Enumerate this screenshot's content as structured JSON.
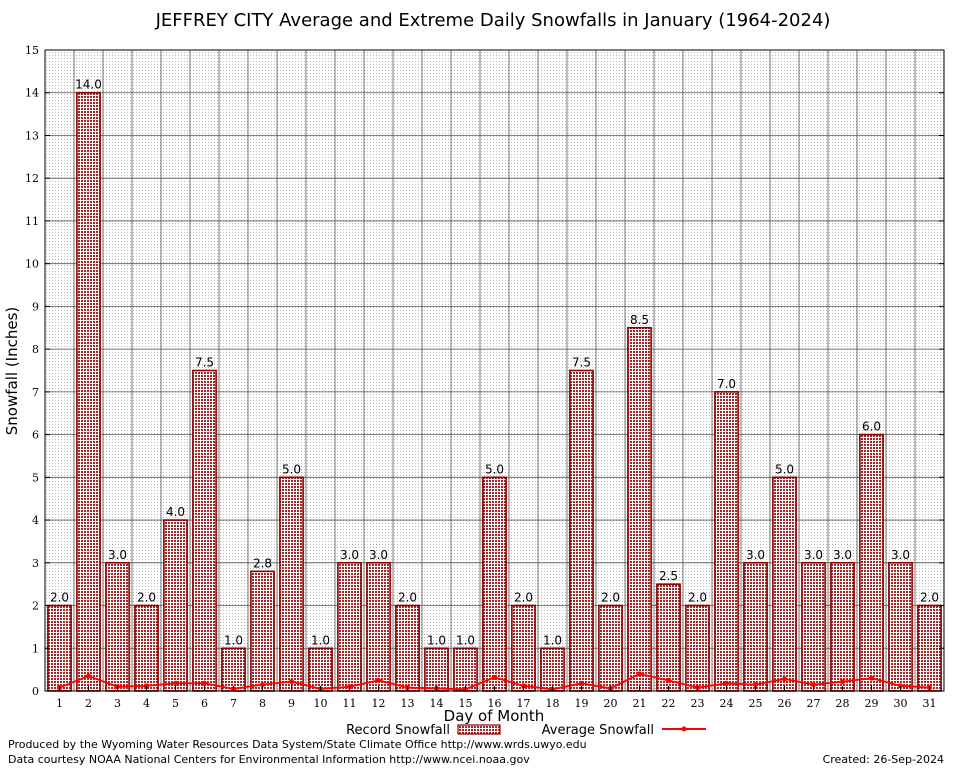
{
  "chart_data": {
    "type": "bar",
    "title": "JEFFREY CITY Average and Extreme Daily Snowfalls in January (1964-2024)",
    "xlabel": "Day of Month",
    "ylabel": "Snowfall (Inches)",
    "ylim": [
      0,
      15
    ],
    "yticks": [
      0,
      1,
      2,
      3,
      4,
      5,
      6,
      7,
      8,
      9,
      10,
      11,
      12,
      13,
      14,
      15
    ],
    "grid": true,
    "categories": [
      "1",
      "2",
      "3",
      "4",
      "5",
      "6",
      "7",
      "8",
      "9",
      "10",
      "11",
      "12",
      "13",
      "14",
      "15",
      "16",
      "17",
      "18",
      "19",
      "20",
      "21",
      "22",
      "23",
      "24",
      "25",
      "26",
      "27",
      "28",
      "29",
      "30",
      "31"
    ],
    "series": [
      {
        "name": "Record Snowfall",
        "kind": "bar",
        "color": "#8b0000",
        "values": [
          2.0,
          14.0,
          3.0,
          2.0,
          4.0,
          7.5,
          1.0,
          2.8,
          5.0,
          1.0,
          3.0,
          3.0,
          2.0,
          1.0,
          1.0,
          5.0,
          2.0,
          1.0,
          7.5,
          2.0,
          8.5,
          2.5,
          2.0,
          7.0,
          3.0,
          5.0,
          3.0,
          3.0,
          6.0,
          3.0,
          2.0
        ],
        "labels": [
          "2.0",
          "14.0",
          "3.0",
          "2.0",
          "4.0",
          "7.5",
          "1.0",
          "2.8",
          "5.0",
          "1.0",
          "3.0",
          "3.0",
          "2.0",
          "1.0",
          "1.0",
          "5.0",
          "2.0",
          "1.0",
          "7.5",
          "2.0",
          "8.5",
          "2.5",
          "2.0",
          "7.0",
          "3.0",
          "5.0",
          "3.0",
          "3.0",
          "6.0",
          "3.0",
          "2.0"
        ]
      },
      {
        "name": "Average Snowfall",
        "kind": "line",
        "color": "#ff0000",
        "values": [
          0.08,
          0.35,
          0.1,
          0.12,
          0.18,
          0.18,
          0.05,
          0.15,
          0.22,
          0.05,
          0.1,
          0.25,
          0.08,
          0.06,
          0.04,
          0.32,
          0.12,
          0.04,
          0.18,
          0.06,
          0.4,
          0.25,
          0.08,
          0.18,
          0.15,
          0.28,
          0.15,
          0.22,
          0.3,
          0.12,
          0.08
        ]
      }
    ],
    "legend_position": "bottom-center"
  },
  "footer": {
    "line1": "Produced by the Wyoming Water Resources Data System/State Climate Office http://www.wrds.uwyo.edu",
    "line2": "Data courtesy NOAA National Centers for Environmental Information http://www.ncei.noaa.gov",
    "created": "Created: 26-Sep-2024"
  }
}
